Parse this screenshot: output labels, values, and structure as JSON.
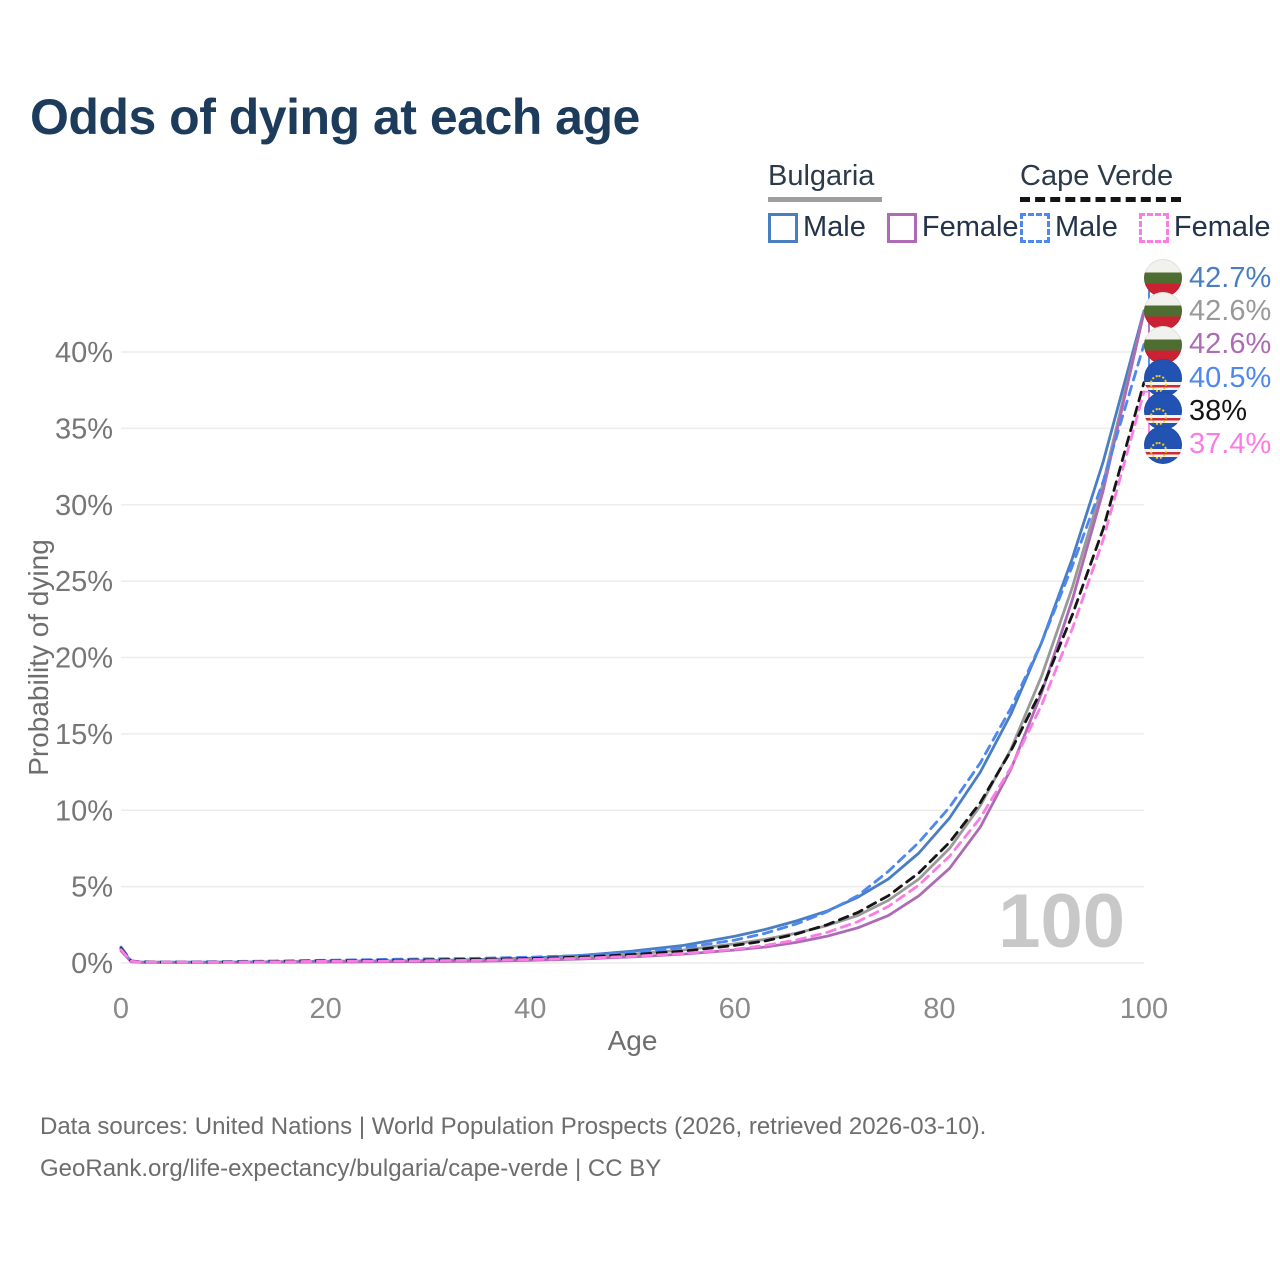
{
  "title": "Odds of dying at each age",
  "watermark": "100",
  "legend": {
    "groups": [
      {
        "title": "Bulgaria",
        "line_style": "solid",
        "items": [
          {
            "label": "Male",
            "color": "#4a7ec2"
          },
          {
            "label": "Female",
            "color": "#ad6bb5"
          }
        ]
      },
      {
        "title": "Cape Verde",
        "line_style": "dashed",
        "items": [
          {
            "label": "Male",
            "color": "#4d87f0"
          },
          {
            "label": "Female",
            "color": "#fb7ce4"
          }
        ]
      }
    ]
  },
  "chart_data": {
    "type": "line",
    "title": "Odds of dying at each age",
    "xlabel": "Age",
    "ylabel": "Probability of dying",
    "xlim": [
      0,
      100
    ],
    "ylim": [
      0,
      46
    ],
    "grid": true,
    "legend_position": "top-right",
    "x_ticks": [
      0,
      20,
      40,
      60,
      80,
      100
    ],
    "y_ticks": [
      0,
      5,
      10,
      15,
      20,
      25,
      30,
      35,
      40
    ],
    "y_tick_suffix": "%",
    "x": [
      0,
      1,
      2,
      4,
      6,
      8,
      10,
      15,
      20,
      25,
      30,
      35,
      40,
      45,
      50,
      55,
      60,
      63,
      66,
      69,
      72,
      75,
      78,
      81,
      84,
      87,
      90,
      93,
      96,
      100
    ],
    "series": [
      {
        "name": "Bulgaria Male",
        "color": "#4a7ec2",
        "dash": false,
        "flag": "bulgaria",
        "end_label": "42.7%",
        "values": [
          0.95,
          0.1,
          0.06,
          0.05,
          0.05,
          0.05,
          0.06,
          0.08,
          0.11,
          0.13,
          0.16,
          0.22,
          0.32,
          0.5,
          0.78,
          1.15,
          1.75,
          2.2,
          2.75,
          3.4,
          4.3,
          5.5,
          7.2,
          9.5,
          12.5,
          16.3,
          21.0,
          26.5,
          32.8,
          42.7
        ]
      },
      {
        "name": "Bulgaria Both sexes",
        "color": "#999999",
        "dash": false,
        "flag": "bulgaria",
        "end_label": "42.6%",
        "values": [
          0.88,
          0.09,
          0.05,
          0.04,
          0.04,
          0.04,
          0.05,
          0.06,
          0.09,
          0.11,
          0.13,
          0.17,
          0.25,
          0.38,
          0.58,
          0.85,
          1.25,
          1.55,
          1.95,
          2.45,
          3.1,
          4.1,
          5.5,
          7.5,
          10.3,
          14.0,
          18.8,
          24.6,
          31.4,
          42.6
        ]
      },
      {
        "name": "Bulgaria Female",
        "color": "#ad6bb5",
        "dash": false,
        "flag": "bulgaria",
        "end_label": "42.6%",
        "values": [
          0.8,
          0.08,
          0.04,
          0.03,
          0.03,
          0.03,
          0.04,
          0.05,
          0.06,
          0.08,
          0.09,
          0.12,
          0.17,
          0.26,
          0.4,
          0.58,
          0.85,
          1.05,
          1.35,
          1.75,
          2.3,
          3.1,
          4.4,
          6.2,
          8.9,
          12.7,
          17.7,
          23.8,
          30.9,
          42.6
        ]
      },
      {
        "name": "Cape Verde Male",
        "color": "#4d87f0",
        "dash": true,
        "flag": "cape-verde",
        "end_label": "40.5%",
        "values": [
          1.05,
          0.14,
          0.08,
          0.07,
          0.07,
          0.08,
          0.09,
          0.13,
          0.18,
          0.23,
          0.27,
          0.31,
          0.38,
          0.5,
          0.7,
          1.0,
          1.5,
          1.95,
          2.55,
          3.35,
          4.4,
          6.0,
          7.9,
          10.2,
          13.1,
          16.7,
          21.0,
          26.0,
          31.5,
          40.5
        ]
      },
      {
        "name": "Cape Verde Both sexes",
        "color": "#151515",
        "dash": true,
        "flag": "cape-verde",
        "end_label": "38%",
        "values": [
          0.95,
          0.12,
          0.07,
          0.06,
          0.06,
          0.06,
          0.07,
          0.1,
          0.14,
          0.17,
          0.2,
          0.24,
          0.29,
          0.39,
          0.55,
          0.78,
          1.15,
          1.45,
          1.9,
          2.5,
          3.3,
          4.4,
          5.9,
          7.9,
          10.5,
          13.9,
          17.9,
          22.8,
          28.4,
          38.0
        ]
      },
      {
        "name": "Cape Verde Female",
        "color": "#fb7ce4",
        "dash": true,
        "flag": "cape-verde",
        "end_label": "37.4%",
        "values": [
          0.88,
          0.11,
          0.06,
          0.05,
          0.05,
          0.05,
          0.06,
          0.08,
          0.11,
          0.13,
          0.15,
          0.18,
          0.23,
          0.31,
          0.44,
          0.62,
          0.9,
          1.15,
          1.5,
          2.0,
          2.7,
          3.7,
          5.1,
          7.0,
          9.5,
          12.8,
          16.9,
          21.9,
          27.7,
          37.4
        ]
      }
    ]
  },
  "sources": {
    "line1": "Data sources: United Nations | World Population Prospects (2026, retrieved 2026-03-10).",
    "line2": "GeoRank.org/life-expectancy/bulgaria/cape-verde | CC BY"
  }
}
